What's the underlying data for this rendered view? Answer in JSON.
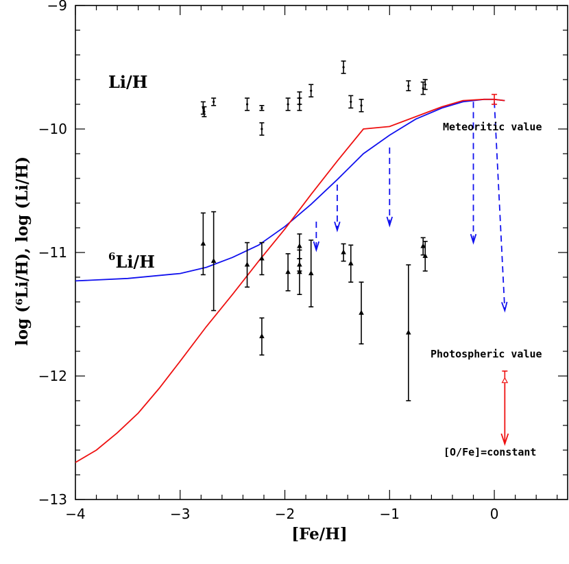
{
  "chart_data": {
    "type": "scatter",
    "title": "",
    "xlabel": "[Fe/H]",
    "ylabel": "log (⁶Li/H),  log (Li/H)",
    "xlim": [
      -4,
      0.7
    ],
    "ylim": [
      -13,
      -9
    ],
    "xticks": [
      -4,
      -3,
      -2,
      -1,
      0
    ],
    "xtick_labels": [
      "−4",
      "−3",
      "−2",
      "−1",
      "0"
    ],
    "yticks": [
      -9,
      -10,
      -11,
      -12,
      -13
    ],
    "ytick_labels": [
      "−9",
      "−10",
      "−11",
      "−12",
      "−13"
    ],
    "grid": false,
    "series": [
      {
        "name": "Li/H",
        "label": "Li/H",
        "color": "#000000",
        "marker": "dot",
        "points": [
          {
            "x": -2.78,
            "y": -9.83,
            "err": 0.05
          },
          {
            "x": -2.77,
            "y": -9.86,
            "err": 0.04
          },
          {
            "x": -2.68,
            "y": -9.78,
            "err": 0.03
          },
          {
            "x": -2.36,
            "y": -9.8,
            "err": 0.05
          },
          {
            "x": -2.22,
            "y": -9.83,
            "err": 0.02
          },
          {
            "x": -2.22,
            "y": -10.0,
            "err": 0.05
          },
          {
            "x": -1.97,
            "y": -9.8,
            "err": 0.05
          },
          {
            "x": -1.86,
            "y": -9.75,
            "err": 0.05
          },
          {
            "x": -1.86,
            "y": -9.8,
            "err": 0.05
          },
          {
            "x": -1.75,
            "y": -9.69,
            "err": 0.05
          },
          {
            "x": -1.44,
            "y": -9.5,
            "err": 0.05
          },
          {
            "x": -1.37,
            "y": -9.78,
            "err": 0.05
          },
          {
            "x": -1.27,
            "y": -9.81,
            "err": 0.05
          },
          {
            "x": -0.82,
            "y": -9.65,
            "err": 0.04
          },
          {
            "x": -0.68,
            "y": -9.67,
            "err": 0.05
          },
          {
            "x": -0.66,
            "y": -9.64,
            "err": 0.04
          }
        ]
      },
      {
        "name": "6Li/H",
        "label_sup": "6",
        "label": "Li/H",
        "color": "#000000",
        "marker": "triangle",
        "points": [
          {
            "x": -2.78,
            "y": -10.93,
            "err": 0.25
          },
          {
            "x": -2.68,
            "y": -11.07,
            "err": 0.4
          },
          {
            "x": -2.36,
            "y": -11.1,
            "err": 0.18
          },
          {
            "x": -2.22,
            "y": -11.05,
            "err": 0.13
          },
          {
            "x": -2.22,
            "y": -11.68,
            "err": 0.15
          },
          {
            "x": -1.97,
            "y": -11.16,
            "err": 0.15
          },
          {
            "x": -1.86,
            "y": -10.95,
            "err": 0.1
          },
          {
            "x": -1.86,
            "y": -11.16,
            "err": 0.18
          },
          {
            "x": -1.86,
            "y": -11.1,
            "err": 0.05
          },
          {
            "x": -1.75,
            "y": -11.17,
            "err": 0.27
          },
          {
            "x": -1.44,
            "y": -11.0,
            "err": 0.07
          },
          {
            "x": -1.37,
            "y": -11.09,
            "err": 0.15
          },
          {
            "x": -1.27,
            "y": -11.49,
            "err": 0.25
          },
          {
            "x": -0.82,
            "y": -11.65,
            "err": 0.55
          },
          {
            "x": -0.68,
            "y": -10.95,
            "err": 0.07
          },
          {
            "x": -0.66,
            "y": -11.03,
            "err": 0.12
          }
        ]
      },
      {
        "name": "model-blue",
        "color": "#1010ee",
        "type": "line",
        "x": [
          -4.0,
          -3.5,
          -3.0,
          -2.75,
          -2.5,
          -2.25,
          -2.0,
          -1.75,
          -1.5,
          -1.25,
          -1.0,
          -0.75,
          -0.5,
          -0.3,
          -0.1,
          0.0,
          0.1
        ],
        "y": [
          -11.23,
          -11.21,
          -11.17,
          -11.12,
          -11.04,
          -10.94,
          -10.79,
          -10.61,
          -10.41,
          -10.2,
          -10.05,
          -9.92,
          -9.83,
          -9.78,
          -9.76,
          -9.76,
          -9.77
        ]
      },
      {
        "name": "model-red",
        "color": "#ee1010",
        "type": "line",
        "x": [
          -4.0,
          -3.8,
          -3.6,
          -3.4,
          -3.2,
          -3.0,
          -2.75,
          -2.5,
          -2.25,
          -2.0,
          -1.75,
          -1.5,
          -1.25,
          -1.0,
          -0.75,
          -0.5,
          -0.3,
          -0.1,
          0.0,
          0.1
        ],
        "y": [
          -12.7,
          -12.6,
          -12.46,
          -12.3,
          -12.1,
          -11.88,
          -11.6,
          -11.34,
          -11.07,
          -10.81,
          -10.53,
          -10.26,
          -10.0,
          -9.98,
          -9.9,
          -9.82,
          -9.77,
          -9.76,
          -9.76,
          -9.77
        ]
      }
    ],
    "upper_limits": [
      {
        "x": -1.7,
        "y_start": -10.75,
        "y_end": -10.98,
        "color": "#1010ee"
      },
      {
        "x": -1.5,
        "y_start": -10.45,
        "y_end": -10.82,
        "color": "#1010ee"
      },
      {
        "x": -1.0,
        "y_start": -10.15,
        "y_end": -10.78,
        "color": "#1010ee"
      },
      {
        "x": -0.2,
        "y_start": -9.78,
        "y_end": -10.92,
        "color": "#1010ee"
      },
      {
        "x": 0.0,
        "y_start": -9.78,
        "x_end": 0.1,
        "y_end": -11.47,
        "color": "#1010ee"
      }
    ],
    "solar_points": [
      {
        "x": 0.0,
        "y": -9.76,
        "err_low": 0.04,
        "err_high": 0.04,
        "marker": "none",
        "color": "#ee1010",
        "label": "Meteoritic value"
      },
      {
        "x": 0.1,
        "y": -12.04,
        "err_high": 0.08,
        "arrow_to": -12.55,
        "marker": "triangle-open",
        "color": "#ee1010",
        "label": "Photospheric value"
      }
    ],
    "annotations": {
      "li_label": "Li/H",
      "li6_sup": "6",
      "li6_label": "Li/H",
      "meteoritic": "Meteoritic value",
      "photospheric": "Photospheric value",
      "constant": "[O/Fe]=constant"
    }
  }
}
